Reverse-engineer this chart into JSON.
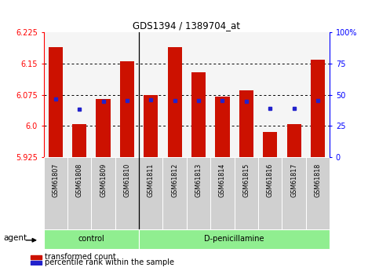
{
  "title": "GDS1394 / 1389704_at",
  "samples": [
    "GSM61807",
    "GSM61808",
    "GSM61809",
    "GSM61810",
    "GSM61811",
    "GSM61812",
    "GSM61813",
    "GSM61814",
    "GSM61815",
    "GSM61816",
    "GSM61817",
    "GSM61818"
  ],
  "bar_values": [
    6.19,
    6.005,
    6.065,
    6.155,
    6.075,
    6.19,
    6.13,
    6.07,
    6.085,
    5.985,
    6.005,
    6.16
  ],
  "blue_dot_values": [
    6.065,
    6.04,
    6.06,
    6.062,
    6.063,
    6.062,
    6.062,
    6.062,
    6.06,
    6.042,
    6.042,
    6.062
  ],
  "ymin": 5.925,
  "ymax": 6.225,
  "yticks_left": [
    5.925,
    6.0,
    6.075,
    6.15,
    6.225
  ],
  "yticks_right": [
    0,
    25,
    50,
    75,
    100
  ],
  "bar_color": "#cc1100",
  "dot_color": "#2222cc",
  "grid_lines": [
    6.0,
    6.075,
    6.15
  ],
  "group_bar_color": "#90ee90",
  "separator_index": 3.5,
  "agent_label": "agent",
  "legend_items": [
    {
      "label": "transformed count",
      "color": "#cc1100"
    },
    {
      "label": "percentile rank within the sample",
      "color": "#2222cc"
    }
  ],
  "bar_width": 0.6,
  "fig_width": 4.83,
  "fig_height": 3.45,
  "dpi": 100
}
